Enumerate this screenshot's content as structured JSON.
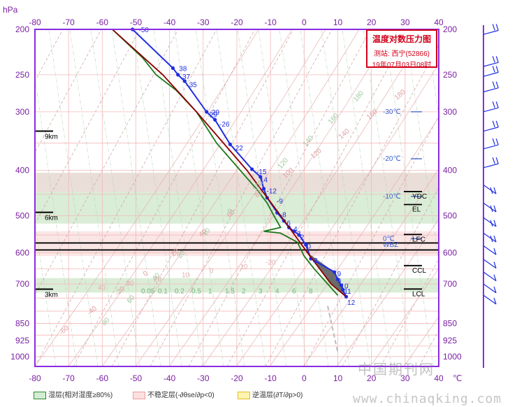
{
  "chart_data": {
    "type": "line",
    "title": "温度对数压力图",
    "subtitle_station": "测站: 西宁(52866)",
    "subtitle_time": "19年07月03日08时",
    "y_unit_label": "hPa",
    "x_unit_label": "℃",
    "x_ticks": [
      -80,
      -70,
      -60,
      -50,
      -40,
      -30,
      -20,
      -10,
      0,
      10,
      20,
      30,
      40
    ],
    "x_tick_labels": [
      "-80",
      "-70",
      "-60",
      "-50",
      "-40",
      "-30",
      "-20",
      "-10",
      "0",
      "10",
      "20",
      "30",
      "40"
    ],
    "p_ticks": [
      200,
      250,
      300,
      400,
      500,
      600,
      700,
      850,
      925,
      1000
    ],
    "p_tick_labels": [
      "200",
      "250",
      "300",
      "400",
      "500",
      "600",
      "700",
      "850",
      "925",
      "1000"
    ],
    "xlim": [
      -80,
      40
    ],
    "plim": [
      200,
      1050
    ],
    "y_scale": "log-pressure",
    "grid": true,
    "series": [
      {
        "name": "temperature",
        "color": "#1f2fe0",
        "points": [
          {
            "p": 200,
            "t": -51
          },
          {
            "p": 242,
            "t": -39
          },
          {
            "p": 250,
            "t": -37.5
          },
          {
            "p": 258,
            "t": -35.5
          },
          {
            "p": 300,
            "t": -29
          },
          {
            "p": 312,
            "t": -26.5
          },
          {
            "p": 352,
            "t": -22
          },
          {
            "p": 398,
            "t": -15.5
          },
          {
            "p": 413,
            "t": -13
          },
          {
            "p": 438,
            "t": -12
          },
          {
            "p": 458,
            "t": -11
          },
          {
            "p": 493,
            "t": -8
          },
          {
            "p": 513,
            "t": -6
          },
          {
            "p": 530,
            "t": -4.5
          },
          {
            "p": 540,
            "t": -3
          },
          {
            "p": 550,
            "t": -1.5
          },
          {
            "p": 577,
            "t": 0.5
          },
          {
            "p": 618,
            "t": 2
          },
          {
            "p": 660,
            "t": 9
          },
          {
            "p": 684,
            "t": 10
          },
          {
            "p": 704,
            "t": 11
          },
          {
            "p": 720,
            "t": 11.5
          },
          {
            "p": 745,
            "t": 12.5
          }
        ]
      },
      {
        "name": "dewpoint",
        "color": "#1a7a1a",
        "points": [
          {
            "p": 200,
            "t": -57
          },
          {
            "p": 230,
            "t": -48
          },
          {
            "p": 250,
            "t": -44
          },
          {
            "p": 270,
            "t": -38
          },
          {
            "p": 300,
            "t": -32
          },
          {
            "p": 350,
            "t": -26
          },
          {
            "p": 400,
            "t": -19
          },
          {
            "p": 440,
            "t": -14
          },
          {
            "p": 470,
            "t": -11
          },
          {
            "p": 500,
            "t": -9
          },
          {
            "p": 530,
            "t": -7
          },
          {
            "p": 540,
            "t": -12
          },
          {
            "p": 545,
            "t": -7
          },
          {
            "p": 570,
            "t": -2
          },
          {
            "p": 610,
            "t": 0
          },
          {
            "p": 650,
            "t": 3
          },
          {
            "p": 700,
            "t": 7
          },
          {
            "p": 740,
            "t": 10
          }
        ]
      },
      {
        "name": "parcel",
        "color": "#8b0000",
        "points": [
          {
            "p": 200,
            "t": -57
          },
          {
            "p": 250,
            "t": -42
          },
          {
            "p": 300,
            "t": -32
          },
          {
            "p": 400,
            "t": -17
          },
          {
            "p": 500,
            "t": -7
          },
          {
            "p": 600,
            "t": 1
          },
          {
            "p": 700,
            "t": 8
          },
          {
            "p": 745,
            "t": 12.5
          }
        ]
      }
    ],
    "point_labels": [
      {
        "p": 200,
        "t": -50,
        "text": "-50"
      },
      {
        "p": 242,
        "t": -38,
        "text": "38"
      },
      {
        "p": 252,
        "t": -37,
        "text": "37"
      },
      {
        "p": 262,
        "t": -35,
        "text": "35"
      },
      {
        "p": 300,
        "t": -29,
        "text": "-29"
      },
      {
        "p": 304,
        "t": -29,
        "text": "29"
      },
      {
        "p": 318,
        "t": -26,
        "text": "-26"
      },
      {
        "p": 358,
        "t": -22,
        "text": "-22"
      },
      {
        "p": 402,
        "t": -15,
        "text": "-15"
      },
      {
        "p": 418,
        "t": -14,
        "text": "14"
      },
      {
        "p": 442,
        "t": -12,
        "text": "-12"
      },
      {
        "p": 465,
        "t": -9,
        "text": "-9"
      },
      {
        "p": 497,
        "t": -8,
        "text": "-8"
      },
      {
        "p": 518,
        "t": -6,
        "text": "6"
      },
      {
        "p": 533,
        "t": -4,
        "text": "4"
      },
      {
        "p": 545,
        "t": -3,
        "text": "3"
      },
      {
        "p": 555,
        "t": -2,
        "text": "2"
      },
      {
        "p": 580,
        "t": 0,
        "text": "0"
      },
      {
        "p": 622,
        "t": 2,
        "text": "2"
      },
      {
        "p": 664,
        "t": 9,
        "text": "9"
      },
      {
        "p": 688,
        "t": 9,
        "text": "9"
      },
      {
        "p": 706,
        "t": 10,
        "text": "10"
      },
      {
        "p": 724,
        "t": 11,
        "text": "11"
      },
      {
        "p": 765,
        "t": 12,
        "text": "12"
      }
    ],
    "height_labels": [
      {
        "p": 330,
        "text": "9km"
      },
      {
        "p": 492,
        "text": "6km"
      },
      {
        "p": 718,
        "text": "3km"
      }
    ],
    "isotherm_labels": [
      {
        "p": 300,
        "text": "-30℃"
      },
      {
        "p": 378,
        "text": "-20℃"
      },
      {
        "p": 455,
        "text": "-10℃"
      },
      {
        "p": 560,
        "text": "0℃"
      },
      {
        "p": 577,
        "text": "WBZ"
      }
    ],
    "level_labels": [
      {
        "p": 455,
        "text": "YDC"
      },
      {
        "p": 485,
        "text": "EL"
      },
      {
        "p": 562,
        "text": "LFC"
      },
      {
        "p": 655,
        "text": "CCL"
      },
      {
        "p": 735,
        "text": "LCL"
      }
    ],
    "mixing_ratio_labels": [
      "0.05",
      "0.1",
      "0.2",
      "0.5",
      "1",
      "1.5",
      "2",
      "3",
      "4",
      "6",
      "8"
    ],
    "dry_adiabat_labels": [
      "-60",
      "-40",
      "-20",
      "0",
      "20",
      "40",
      "60",
      "80",
      "100",
      "120",
      "140",
      "160",
      "180"
    ],
    "moist_labels": [
      "80",
      "60",
      "40",
      "20",
      "10",
      "0",
      "100",
      "120",
      "140",
      "160",
      "180"
    ],
    "stable_labels": [
      "40",
      "30",
      "20",
      "10",
      "0",
      "-10",
      "-20"
    ],
    "wet_layers": [
      {
        "p_top": 445,
        "p_bottom": 520
      },
      {
        "p_top": 680,
        "p_bottom": 730
      }
    ],
    "unstable_layers": [
      {
        "p_top": 405,
        "p_bottom": 445
      },
      {
        "p_top": 540,
        "p_bottom": 610
      },
      {
        "p_top": 690,
        "p_bottom": 700
      }
    ],
    "cape_region_color": "#555555",
    "legend": [
      {
        "label": "湿层(相对湿度≥80%)",
        "color": "#d4ecd4",
        "border": "#2e8b2e"
      },
      {
        "label": "不稳定层(-∂θse/∂p<0)",
        "color": "#fce0e0",
        "border": "#e8a0a0"
      },
      {
        "label": "逆温层(∂T/∂p>0)",
        "color": "#fff3b0",
        "border": "#e0c020"
      }
    ],
    "wind_barbs_present": true
  },
  "watermark": {
    "line1": "中国期刊网",
    "line2": "www.chinaqking.com"
  }
}
